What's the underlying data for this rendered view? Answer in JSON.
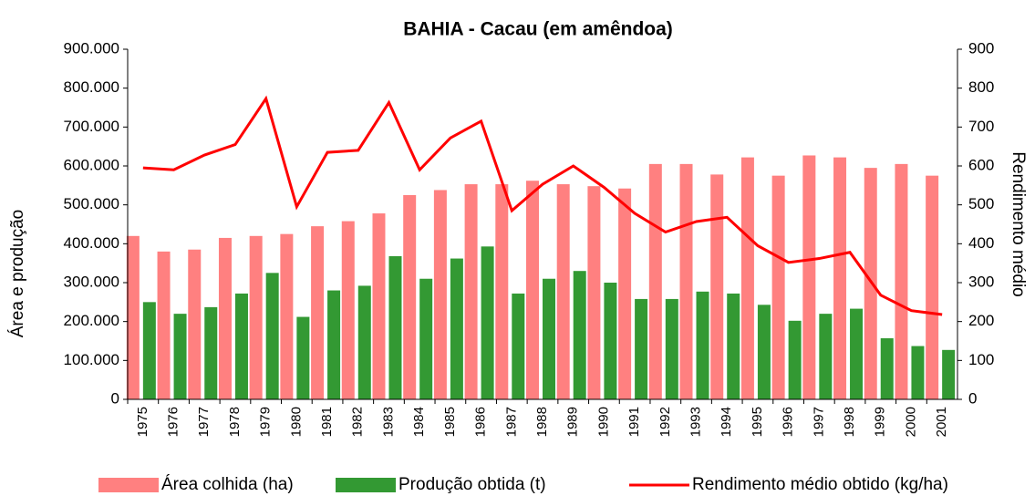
{
  "chart_data": {
    "type": "bar",
    "title": "BAHIA - Cacau (em amêndoa)",
    "ylabel": "Área e produção",
    "y2label": "Rendimento médio",
    "categories": [
      "1975",
      "1976",
      "1977",
      "1978",
      "1979",
      "1980",
      "1981",
      "1982",
      "1983",
      "1984",
      "1985",
      "1986",
      "1987",
      "1988",
      "1989",
      "1990",
      "1991",
      "1992",
      "1993",
      "1994",
      "1995",
      "1996",
      "1997",
      "1998",
      "1999",
      "2000",
      "2001"
    ],
    "series": [
      {
        "name": "Área colhida (ha)",
        "type": "bar",
        "color": "#ff8080",
        "values": [
          420000,
          380000,
          385000,
          415000,
          420000,
          425000,
          445000,
          458000,
          478000,
          525000,
          538000,
          553000,
          553000,
          562000,
          553000,
          548000,
          542000,
          605000,
          605000,
          578000,
          622000,
          575000,
          627000,
          622000,
          595000,
          605000,
          575000
        ]
      },
      {
        "name": "Produção obtida (t)",
        "type": "bar",
        "color": "#339933",
        "values": [
          250000,
          220000,
          237000,
          272000,
          325000,
          212000,
          280000,
          292000,
          368000,
          310000,
          362000,
          393000,
          272000,
          310000,
          330000,
          300000,
          258000,
          258000,
          277000,
          272000,
          243000,
          202000,
          220000,
          233000,
          157000,
          137000,
          127000
        ]
      },
      {
        "name": "Rendimento médio obtido (kg/ha)",
        "type": "line",
        "axis": "y2",
        "color": "#ff0000",
        "values": [
          595,
          590,
          628,
          655,
          773,
          495,
          635,
          640,
          763,
          590,
          672,
          715,
          485,
          553,
          600,
          545,
          478,
          430,
          457,
          468,
          395,
          352,
          362,
          378,
          268,
          228,
          218
        ]
      }
    ],
    "ylim": [
      0,
      900000
    ],
    "yticks": [
      0,
      {
        "value": 100000,
        "label": "100.000"
      },
      {
        "value": 200000,
        "label": "200.000"
      },
      {
        "value": 300000,
        "label": "300.000"
      },
      {
        "value": 400000,
        "label": "400.000"
      },
      {
        "value": 500000,
        "label": "500.000"
      },
      {
        "value": 600000,
        "label": "600.000"
      },
      {
        "value": 700000,
        "label": "700.000"
      },
      {
        "value": 800000,
        "label": "800.000"
      },
      {
        "value": 900000,
        "label": "900.000"
      }
    ],
    "y2lim": [
      0,
      900
    ],
    "y2ticks": [
      0,
      100,
      200,
      300,
      400,
      500,
      600,
      700,
      800,
      900
    ],
    "legend": "bottom"
  }
}
